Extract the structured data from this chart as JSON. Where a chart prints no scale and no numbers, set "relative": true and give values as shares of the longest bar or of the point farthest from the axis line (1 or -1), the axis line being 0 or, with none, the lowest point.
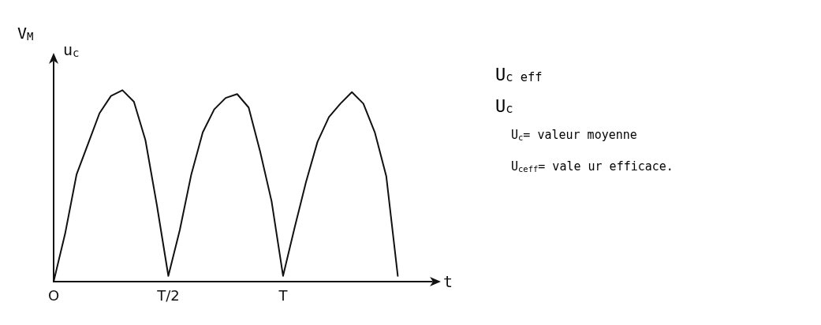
{
  "chart_data": {
    "type": "line",
    "relative": true,
    "xlabel": "t",
    "ylabel": "u$_{c}$",
    "categories": [
      "O",
      null,
      null,
      null,
      null,
      null,
      null,
      null,
      null,
      null,
      "T/2",
      null,
      null,
      null,
      null,
      null,
      null,
      null,
      null,
      null,
      "T",
      null,
      null,
      null,
      null,
      null,
      null,
      null,
      null,
      null,
      null,
      null,
      null,
      null
    ],
    "series": [
      {
        "color": "#111111",
        "values": [
          0,
          0.25,
          0.56,
          0.72,
          0.88,
          0.97,
          1,
          0.94,
          0.74,
          0.4,
          0.03,
          0.27,
          0.56,
          0.78,
          0.9,
          0.96,
          0.98,
          0.91,
          0.68,
          0.42,
          0.03,
          0.28,
          0.52,
          0.73,
          0.86,
          0.93,
          0.99,
          0.93,
          0.78,
          0.55,
          0.03,
          null,
          null,
          null
        ]
      }
    ],
    "grid": false,
    "marker": "none",
    "line_style": "solid",
    "annotations": [
      "V$_{M}$",
      "U$_{c eff}$",
      "U$_{c}$",
      "U$_{c}$= valeur moyenne",
      "U$_{ceff}$= vale ur efficace."
    ]
  }
}
